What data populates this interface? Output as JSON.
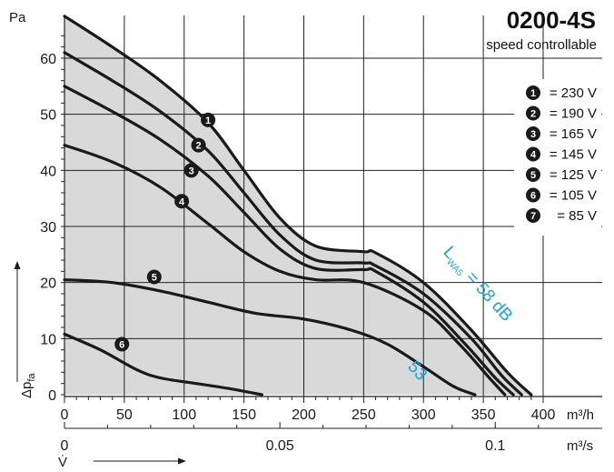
{
  "chart_data": {
    "type": "line",
    "title": "0200-4S",
    "subtitle": "speed controllable",
    "ylabel_unit": "Pa",
    "ylabel_symbol": "Δp",
    "ylabel_sub": "fa",
    "xlabel_symbol": "V̇",
    "x_unit_primary": "m³/h",
    "x_unit_secondary": "m³/s",
    "xlim": [
      0,
      400
    ],
    "ylim": [
      0,
      70
    ],
    "x_ticks": [
      0,
      50,
      100,
      150,
      200,
      250,
      300,
      350,
      400
    ],
    "x_tick_labels": [
      "0",
      "50",
      "100",
      "150",
      "200",
      "250",
      "300",
      "350",
      "400"
    ],
    "y_ticks": [
      0,
      10,
      20,
      30,
      40,
      50,
      60
    ],
    "y_tick_labels": [
      "0",
      "10",
      "20",
      "30",
      "40",
      "50",
      "60"
    ],
    "x2_ticks": [
      0,
      0.05,
      0.1
    ],
    "x2_tick_labels": [
      "0",
      "0.05",
      "0.1"
    ],
    "grid": true,
    "legend_position": "top-right",
    "series": [
      {
        "marker": "1",
        "label": "= 230 V",
        "x": [
          0,
          40,
          80,
          120,
          150,
          180,
          210,
          250,
          260,
          300,
          340,
          370,
          390
        ],
        "y": [
          67.5,
          62,
          56,
          48.5,
          40,
          31.5,
          26.5,
          25.5,
          25.3,
          20,
          11.5,
          4,
          0
        ]
      },
      {
        "marker": "2",
        "label": "= 190 V",
        "x": [
          0,
          40,
          80,
          120,
          150,
          180,
          210,
          250,
          260,
          300,
          340,
          365,
          382
        ],
        "y": [
          61,
          56,
          50.5,
          43.5,
          36,
          28.5,
          24,
          23.5,
          23,
          18,
          10,
          3.5,
          0
        ]
      },
      {
        "marker": "3",
        "label": "= 165 V",
        "x": [
          0,
          40,
          80,
          120,
          150,
          180,
          210,
          250,
          260,
          300,
          335,
          360,
          375
        ],
        "y": [
          55,
          50.5,
          45.5,
          39,
          32.5,
          26,
          22.5,
          22.3,
          22,
          16.5,
          9,
          3,
          0
        ]
      },
      {
        "marker": "4",
        "label": "= 145 V",
        "x": [
          0,
          40,
          80,
          120,
          150,
          180,
          210,
          250,
          300,
          330,
          355,
          368
        ],
        "y": [
          44.5,
          41.5,
          37,
          30.5,
          25.5,
          22,
          20.5,
          20,
          15,
          9,
          3,
          0
        ]
      },
      {
        "marker": "5",
        "label": "= 125 V",
        "x": [
          0,
          40,
          80,
          120,
          160,
          200,
          240,
          270,
          300,
          325,
          343
        ],
        "y": [
          20.5,
          20,
          18.5,
          16.5,
          14.5,
          13.5,
          11.5,
          9,
          5,
          1.5,
          0
        ]
      },
      {
        "marker": "6",
        "label": "= 105 V",
        "x": [
          0,
          30,
          60,
          80,
          110,
          140,
          165
        ],
        "y": [
          10.8,
          8,
          4.5,
          3,
          2,
          1,
          0
        ]
      },
      {
        "marker": "7",
        "label": "= 85 V",
        "x": [],
        "y": []
      }
    ],
    "annotations": [
      {
        "id": "lwa-58",
        "prefix": "L",
        "sub": "WA5",
        "suffix": " = 58 dB",
        "x": 363,
        "y": 14,
        "angle": 48
      },
      {
        "id": "lwa-53",
        "text": "53",
        "x": 312,
        "y": 2,
        "angle": 48
      }
    ]
  },
  "colors": {
    "curve": "#1a1a1a",
    "fill": "#d9d9d9",
    "grid": "#222222",
    "annotation": "#1aa3d9",
    "marker_bg": "#1a1a1a"
  }
}
